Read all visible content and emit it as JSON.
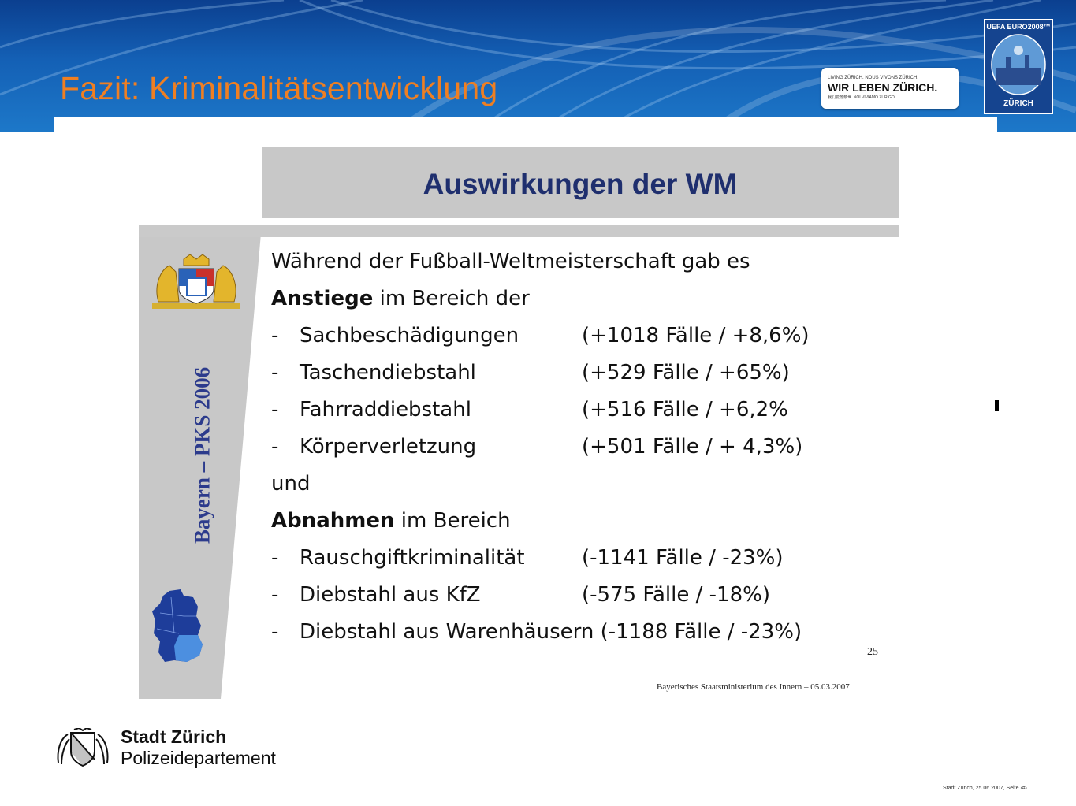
{
  "header": {
    "title": "Fazit: Kriminalitätsentwicklung",
    "partner_badge": {
      "small_line": "LIVING ZÜRICH. NOUS VIVONS ZÜRICH.",
      "main_line": "WIR LEBEN ZÜRICH.",
      "tiny_line": "我们爱苏黎世. NOI VIVIAMO ZURIGO."
    },
    "euro_logo": {
      "top_text": "UEFA EURO2008™",
      "bottom_text": "ZÜRICH"
    }
  },
  "slide": {
    "title": "Auswirkungen der WM",
    "side_label": "Bayern – PKS 2006",
    "intro_line1": "Während der Fußball-Weltmeisterschaft gab es",
    "increase_bold": "Anstiege",
    "increase_rest": " im Bereich der",
    "increases": [
      {
        "dash": "-",
        "label": "Sachbeschädigungen",
        "value": "(+1018 Fälle / +8,6%)"
      },
      {
        "dash": "-",
        "label": "Taschendiebstahl",
        "value": "(+529 Fälle / +65%)"
      },
      {
        "dash": "-",
        "label": "Fahrraddiebstahl",
        "value": "(+516 Fälle / +6,2%"
      },
      {
        "dash": "-",
        "label": "Körperverletzung",
        "value": "(+501 Fälle / + 4,3%)"
      }
    ],
    "connector": "und",
    "decrease_bold": "Abnahmen",
    "decrease_rest": " im Bereich",
    "decreases": [
      {
        "dash": "-",
        "label": "Rauschgiftkriminalität",
        "value": "(-1141 Fälle / -23%)"
      },
      {
        "dash": "-",
        "label": "Diebstahl aus KfZ",
        "value": "(-575 Fälle / -18%)"
      },
      {
        "dash": "-",
        "label": "Diebstahl aus Warenhäusern (-1188 Fälle / -23%)",
        "value": ""
      }
    ],
    "page_number": "25",
    "source": "Bayerisches Staatsministerium des Innern – 05.03.2007"
  },
  "footer": {
    "city": "Stadt Zürich",
    "department": "Polizeidepartement",
    "note": "Stadt Zürich, 25.06.2007,   Seite ‹#›"
  },
  "colors": {
    "title_orange": "#ef7f22",
    "banner_blue": "#1460b5",
    "slide_title_navy": "#1f2f6e",
    "panel_grey": "#c8c8c8"
  }
}
